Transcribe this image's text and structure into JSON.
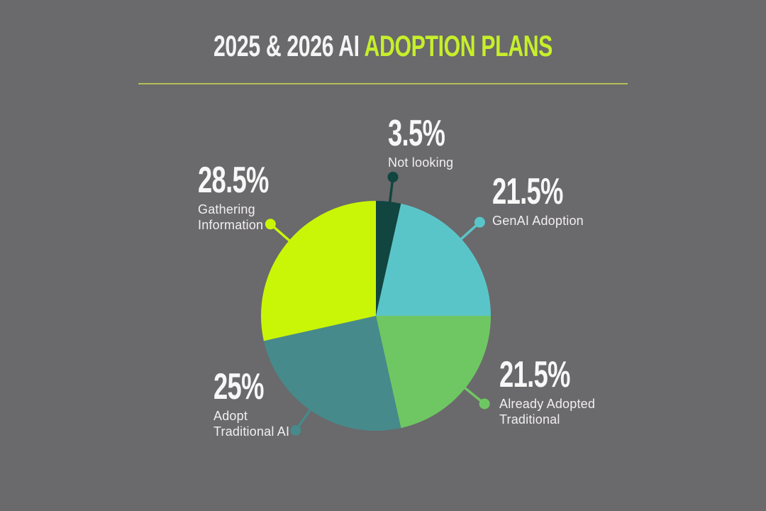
{
  "title": {
    "prefix": "2025 & 2026 AI ",
    "highlight": "ADOPTION PLANS"
  },
  "colors": {
    "background": "#6a696b",
    "title_text": "#f4f4f4",
    "accent": "#c6ef2b",
    "divider": "#b4bf5a",
    "label_text": "#f1eff0"
  },
  "chart_data": {
    "type": "pie",
    "title": "2025 & 2026 AI ADOPTION PLANS",
    "start_angle_deg": 0,
    "direction": "clockwise",
    "legend_position": "callouts-around-pie",
    "slices": [
      {
        "label": "Not looking",
        "value": 3.5,
        "display": "3.5%",
        "color": "#11453f",
        "label_lines": [
          "Not looking"
        ]
      },
      {
        "label": "GenAI Adoption",
        "value": 21.5,
        "display": "21.5%",
        "color": "#5ac5c9",
        "label_lines": [
          "GenAI Adoption"
        ]
      },
      {
        "label": "Already Adopted Traditional",
        "value": 21.5,
        "display": "21.5%",
        "color": "#6fc763",
        "label_lines": [
          "Already Adopted",
          "Traditional"
        ]
      },
      {
        "label": "Adopt Traditional AI",
        "value": 25,
        "display": "25%",
        "color": "#478a8b",
        "label_lines": [
          "Adopt",
          "Traditional AI"
        ]
      },
      {
        "label": "Gathering Information",
        "value": 28.5,
        "display": "28.5%",
        "color": "#c9f606",
        "label_lines": [
          "Gathering",
          "Information"
        ]
      }
    ]
  }
}
